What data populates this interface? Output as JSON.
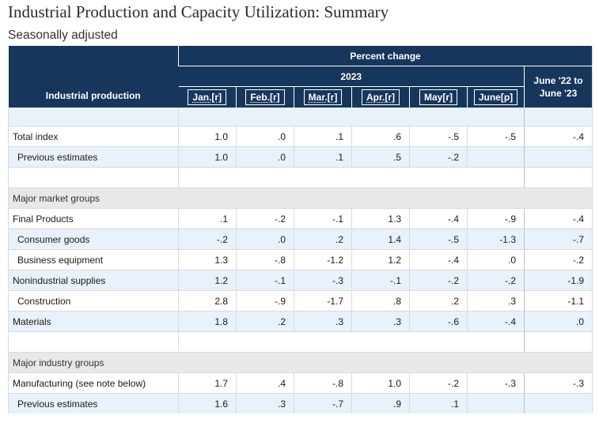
{
  "title": "Industrial Production and Capacity Utilization: Summary",
  "subtitle": "Seasonally adjusted",
  "table": {
    "header_percent_change": "Percent change",
    "header_year": "2023",
    "header_label": "Industrial production",
    "header_yoy": [
      "June '22 to",
      "June '23"
    ],
    "months": [
      {
        "label": "Jan.[r]",
        "link": true
      },
      {
        "label": "Feb.[r]",
        "link": true
      },
      {
        "label": "Mar.[r]",
        "link": true
      },
      {
        "label": "Apr.[r]",
        "link": true
      },
      {
        "label": "May[r]",
        "link": false
      },
      {
        "label": "June[p]",
        "link": false
      }
    ],
    "rows": [
      {
        "type": "spacer",
        "style": "blue",
        "first": true
      },
      {
        "type": "data",
        "style": "white",
        "indent": false,
        "label": "Total index",
        "values": [
          "1.0",
          ".0",
          ".1",
          ".6",
          "-.5",
          "-.5"
        ],
        "yoy": "-.4"
      },
      {
        "type": "data",
        "style": "blue",
        "indent": true,
        "label": "Previous estimates",
        "values": [
          "1.0",
          ".0",
          ".1",
          ".5",
          "-.2",
          ""
        ],
        "yoy": ""
      },
      {
        "type": "spacer",
        "style": "white"
      },
      {
        "type": "section",
        "label": "Major market groups"
      },
      {
        "type": "data",
        "style": "white",
        "indent": false,
        "label": "Final Products",
        "values": [
          ".1",
          "-.2",
          "-.1",
          "1.3",
          "-.4",
          "-.9"
        ],
        "yoy": "-.4"
      },
      {
        "type": "data",
        "style": "blue",
        "indent": true,
        "label": "Consumer goods",
        "values": [
          "-.2",
          ".0",
          ".2",
          "1.4",
          "-.5",
          "-1.3"
        ],
        "yoy": "-.7"
      },
      {
        "type": "data",
        "style": "white",
        "indent": true,
        "label": "Business equipment",
        "values": [
          "1.3",
          "-.8",
          "-1.2",
          "1.2",
          "-.4",
          ".0"
        ],
        "yoy": "-.2"
      },
      {
        "type": "data",
        "style": "blue",
        "indent": false,
        "label": "Nonindustrial supplies",
        "values": [
          "1.2",
          "-.1",
          "-.3",
          "-.1",
          "-.2",
          "-.2"
        ],
        "yoy": "-1.9"
      },
      {
        "type": "data",
        "style": "white",
        "indent": true,
        "label": "Construction",
        "values": [
          "2.8",
          "-.9",
          "-1.7",
          ".8",
          ".2",
          ".3"
        ],
        "yoy": "-1.1"
      },
      {
        "type": "data",
        "style": "blue",
        "indent": false,
        "label": "Materials",
        "values": [
          "1.8",
          ".2",
          ".3",
          ".3",
          "-.6",
          "-.4"
        ],
        "yoy": ".0"
      },
      {
        "type": "spacer",
        "style": "white"
      },
      {
        "type": "section",
        "label": "Major industry groups"
      },
      {
        "type": "data",
        "style": "white",
        "indent": false,
        "label": "Manufacturing (see note below)",
        "values": [
          "1.7",
          ".4",
          "-.8",
          "1.0",
          "-.2",
          "-.3"
        ],
        "yoy": "-.3"
      },
      {
        "type": "data",
        "style": "blue",
        "indent": true,
        "label": "Previous estimates",
        "values": [
          "1.6",
          ".3",
          "-.7",
          ".9",
          ".1",
          ""
        ],
        "yoy": ""
      }
    ]
  }
}
